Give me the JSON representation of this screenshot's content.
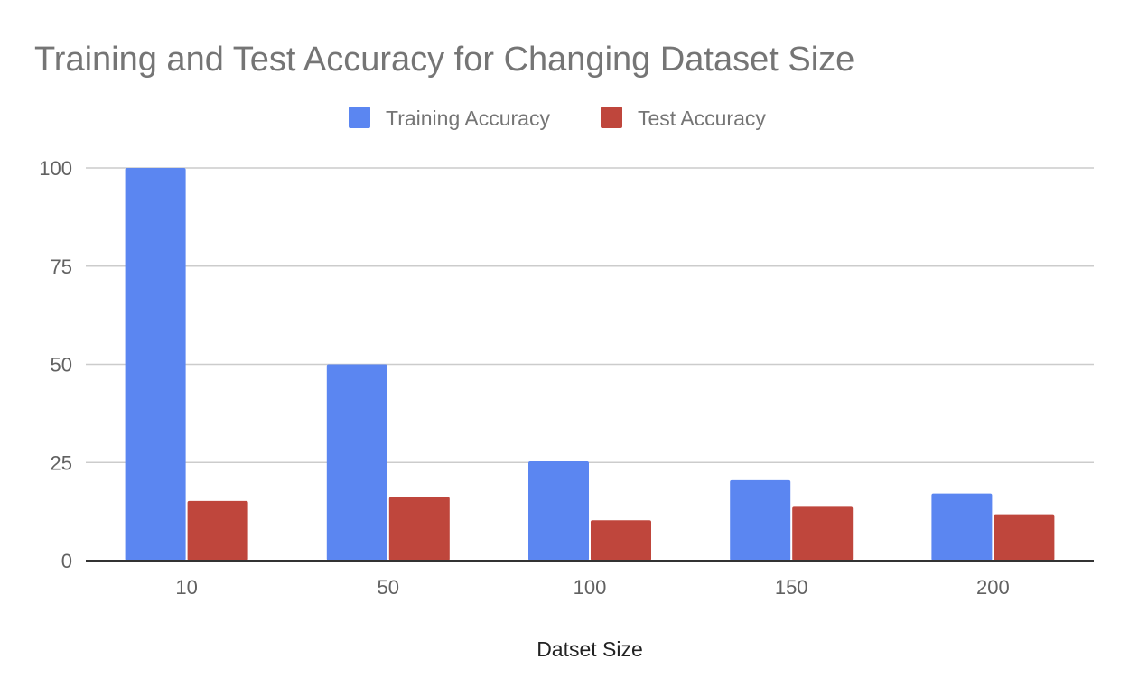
{
  "chart_data": {
    "type": "bar",
    "title": "Training and Test Accuracy for Changing Dataset Size",
    "xlabel": "Datset Size",
    "ylabel": "",
    "categories": [
      "10",
      "50",
      "100",
      "150",
      "200"
    ],
    "series": [
      {
        "name": "Training Accuracy",
        "color": "#5b86f1",
        "values": [
          100,
          50,
          25.3,
          20.5,
          17.1
        ]
      },
      {
        "name": "Test Accuracy",
        "color": "#bf463c",
        "values": [
          15.2,
          16.2,
          10.3,
          13.7,
          11.8
        ]
      }
    ],
    "ylim": [
      0,
      100
    ],
    "yticks": [
      "0",
      "25",
      "50",
      "75",
      "100"
    ],
    "grid": true,
    "legend_position": "top"
  }
}
